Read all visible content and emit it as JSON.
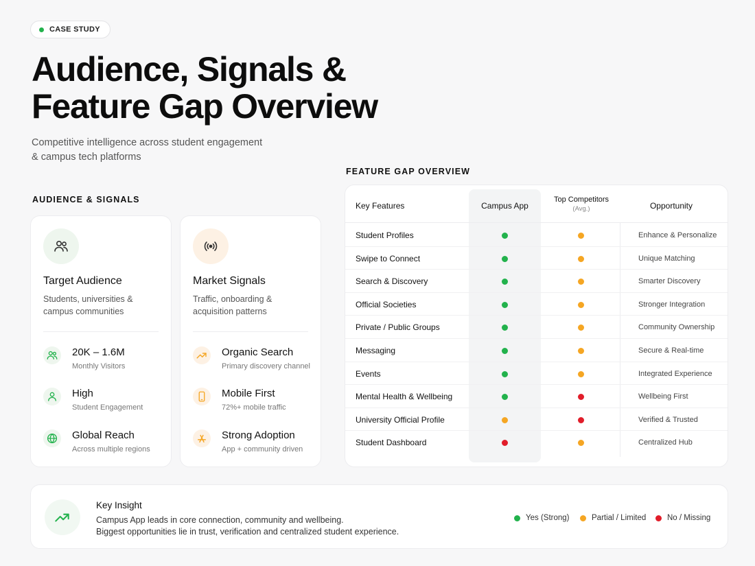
{
  "badge": {
    "label": "CASE STUDY"
  },
  "title": {
    "line1": "Audience, Signals &",
    "line2": "Feature Gap Overview"
  },
  "subtitle": {
    "line1": "Competitive intelligence across student engagement",
    "line2": "& campus tech platforms"
  },
  "colors": {
    "green": "#22b24c",
    "amber": "#f5a623",
    "red": "#e11d2a",
    "green_bg": "#eef6ee",
    "amber_bg": "#fdf1e4"
  },
  "audience_section": {
    "label": "AUDIENCE & SIGNALS",
    "cards": [
      {
        "icon": "users-icon",
        "title": "Target Audience",
        "desc_line1": "Students, universities &",
        "desc_line2": "campus communities",
        "metrics": [
          {
            "icon": "users-icon",
            "value": "20K – 1.6M",
            "label": "Monthly Visitors"
          },
          {
            "icon": "user-icon",
            "value": "High",
            "label": "Student Engagement"
          },
          {
            "icon": "globe-icon",
            "value": "Global Reach",
            "label": "Across multiple regions"
          }
        ]
      },
      {
        "icon": "broadcast-icon",
        "title": "Market Signals",
        "desc_line1": "Traffic, onboarding &",
        "desc_line2": "acquisition patterns",
        "metrics": [
          {
            "icon": "trend-up-icon",
            "value": "Organic Search",
            "label": "Primary discovery channel"
          },
          {
            "icon": "mobile-icon",
            "value": "Mobile First",
            "label": "72%+ mobile traffic"
          },
          {
            "icon": "app-store-icon",
            "value": "Strong Adoption",
            "label": "App + community driven"
          }
        ]
      }
    ]
  },
  "feature_gap": {
    "label": "FEATURE GAP OVERVIEW",
    "headers": {
      "features": "Key Features",
      "campus": "Campus App",
      "competitors": "Top Competitors",
      "competitors_sub": "(Avg.)",
      "opportunity": "Opportunity"
    },
    "rows": [
      {
        "feature": "Student Profiles",
        "campus": "green",
        "competitors": "amber",
        "opportunity": "Enhance & Personalize"
      },
      {
        "feature": "Swipe to Connect",
        "campus": "green",
        "competitors": "amber",
        "opportunity": "Unique Matching"
      },
      {
        "feature": "Search & Discovery",
        "campus": "green",
        "competitors": "amber",
        "opportunity": "Smarter Discovery"
      },
      {
        "feature": "Official Societies",
        "campus": "green",
        "competitors": "amber",
        "opportunity": "Stronger Integration"
      },
      {
        "feature": "Private / Public Groups",
        "campus": "green",
        "competitors": "amber",
        "opportunity": "Community Ownership"
      },
      {
        "feature": "Messaging",
        "campus": "green",
        "competitors": "amber",
        "opportunity": "Secure & Real-time"
      },
      {
        "feature": "Events",
        "campus": "green",
        "competitors": "amber",
        "opportunity": "Integrated Experience"
      },
      {
        "feature": "Mental Health & Wellbeing",
        "campus": "green",
        "competitors": "red",
        "opportunity": "Wellbeing First"
      },
      {
        "feature": "University Official Profile",
        "campus": "amber",
        "competitors": "red",
        "opportunity": "Verified & Trusted"
      },
      {
        "feature": "Student Dashboard",
        "campus": "red",
        "competitors": "amber",
        "opportunity": "Centralized Hub"
      }
    ]
  },
  "insight": {
    "icon": "trend-up-icon",
    "title": "Key Insight",
    "line1": "Campus App leads in core connection, community and wellbeing.",
    "line2": "Biggest opportunities lie in trust, verification and centralized student experience."
  },
  "legend": [
    {
      "color": "green",
      "label": "Yes (Strong)"
    },
    {
      "color": "amber",
      "label": "Partial / Limited"
    },
    {
      "color": "red",
      "label": "No / Missing"
    }
  ]
}
